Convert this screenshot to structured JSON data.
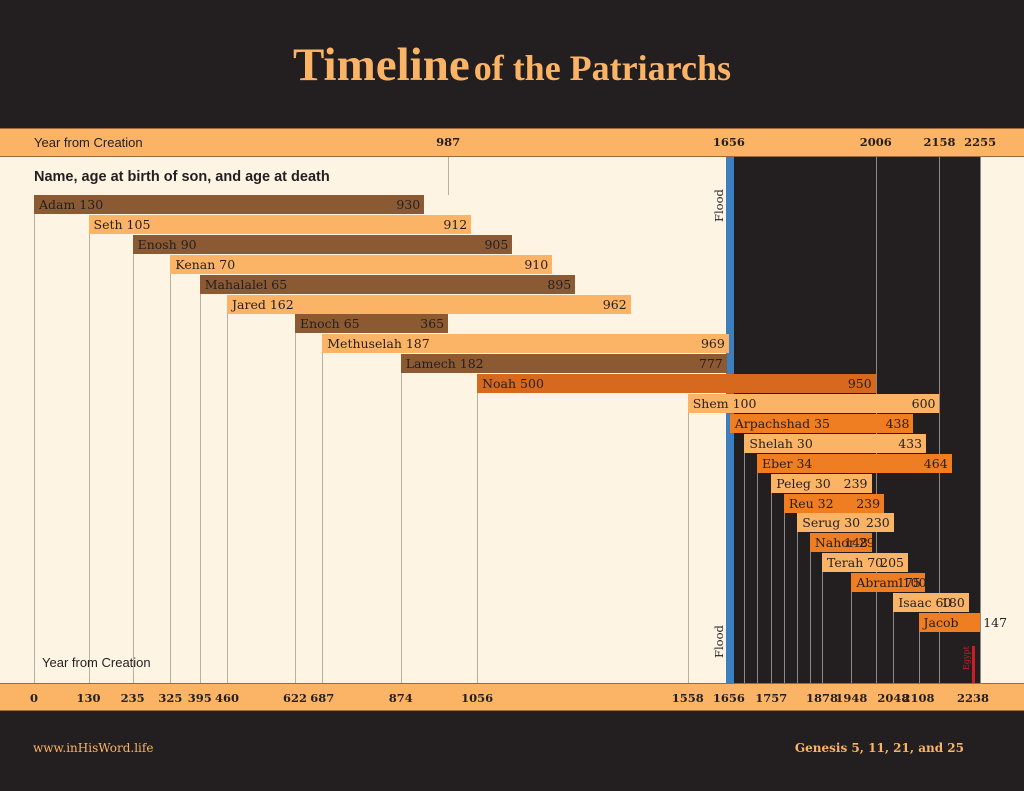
{
  "title": {
    "main": "Timeline",
    "rest": "of the Patriarchs"
  },
  "footer": {
    "website": "www.inHisWord.life",
    "reference": "Genesis  5, 11, 21, and 25"
  },
  "colors": {
    "dark": "#231f20",
    "light_bar": "#fbb465",
    "brown_bar": "#8c5a32",
    "orange_bar": "#ef7d22",
    "noah_bar": "#d7691f",
    "flood": "#3c7fc1",
    "egypt": "#c81f25",
    "panel": "#fdf4e3"
  },
  "chart_data": {
    "type": "bar",
    "subtitle": "Name, age at birth of son, and age at death",
    "top_axis_label": "Year  from Creation",
    "bottom_axis_label": "Year from Creation",
    "flood_label": "Flood",
    "egypt_label": "Egypt",
    "xlim": [
      0,
      2255
    ],
    "flood_year": 1656,
    "egypt_year": 2238,
    "top_ticks": [
      "987",
      "1656",
      "2006",
      "2158",
      "2255"
    ],
    "bottom_ticks": [
      "0",
      "130",
      "235",
      "325",
      "395",
      "460",
      "622",
      "687",
      "874",
      "1056",
      "1558",
      "1656",
      "1757",
      "1878",
      "1948",
      "2048",
      "2108",
      "2238"
    ],
    "patriarchs": [
      {
        "name": "Adam",
        "birth": 0,
        "son": "130",
        "death": "930",
        "style": "brown"
      },
      {
        "name": "Seth",
        "birth": 130,
        "son": "105",
        "death": "912",
        "style": "light"
      },
      {
        "name": "Enosh",
        "birth": 235,
        "son": "90",
        "death": "905",
        "style": "brown"
      },
      {
        "name": "Kenan",
        "birth": 325,
        "son": "70",
        "death": "910",
        "style": "light"
      },
      {
        "name": "Mahalalel",
        "birth": 395,
        "son": "65",
        "death": "895",
        "style": "brown"
      },
      {
        "name": "Jared",
        "birth": 460,
        "son": "162",
        "death": "962",
        "style": "light"
      },
      {
        "name": "Enoch",
        "birth": 622,
        "son": "65",
        "death": "365",
        "style": "brown"
      },
      {
        "name": "Methuselah",
        "birth": 687,
        "son": "187",
        "death": "969",
        "style": "light"
      },
      {
        "name": "Lamech",
        "birth": 874,
        "son": "182",
        "death": "777",
        "style": "brown"
      },
      {
        "name": "Noah",
        "birth": 1056,
        "son": "500",
        "death": "950",
        "style": "noah"
      },
      {
        "name": "Shem",
        "birth": 1558,
        "son": "100",
        "death": "600",
        "style": "light"
      },
      {
        "name": "Arpachshad",
        "birth": 1658,
        "son": "35",
        "death": "438",
        "style": "orange"
      },
      {
        "name": "Shelah",
        "birth": 1693,
        "son": "30",
        "death": "433",
        "style": "light"
      },
      {
        "name": "Eber",
        "birth": 1723,
        "son": "34",
        "death": "464",
        "style": "orange"
      },
      {
        "name": "Peleg",
        "birth": 1757,
        "son": "30",
        "death": "239",
        "style": "light"
      },
      {
        "name": "Reu",
        "birth": 1787,
        "son": "32",
        "death": "239",
        "style": "orange"
      },
      {
        "name": "Serug",
        "birth": 1819,
        "son": "30",
        "death": "230",
        "style": "light"
      },
      {
        "name": "Nahor",
        "birth": 1849,
        "son": "29",
        "death": "148",
        "style": "orange"
      },
      {
        "name": "Terah",
        "birth": 1878,
        "son": "70",
        "death": "205",
        "style": "light"
      },
      {
        "name": "Abram",
        "birth": 1948,
        "son": "100",
        "death": "175",
        "style": "orange"
      },
      {
        "name": "Isaac",
        "birth": 2048,
        "son": "60",
        "death": "180",
        "style": "light"
      },
      {
        "name": "Jacob",
        "birth": 2108,
        "son": "",
        "death": "147",
        "style": "orange"
      }
    ]
  }
}
